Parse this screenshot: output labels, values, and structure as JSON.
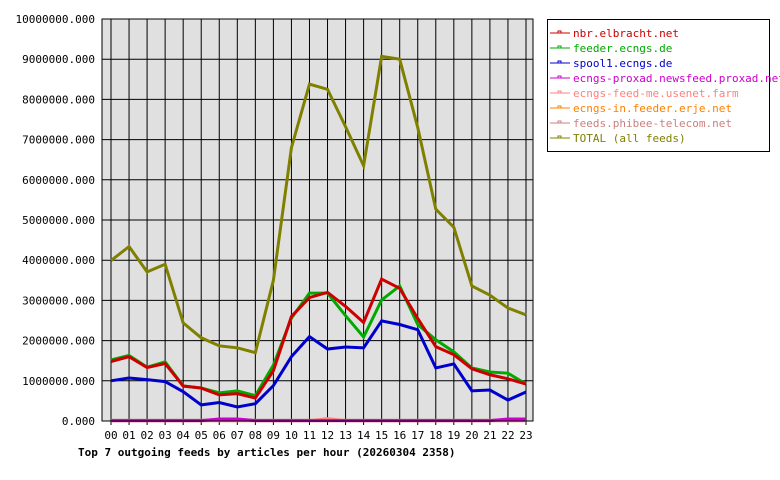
{
  "chart_data": {
    "type": "line",
    "title": "Top 7 outgoing feeds by articles per hour (20260304 2358)",
    "xlabel": "",
    "ylabel": "",
    "categories": [
      "00",
      "01",
      "02",
      "03",
      "04",
      "05",
      "06",
      "07",
      "08",
      "09",
      "10",
      "11",
      "12",
      "13",
      "14",
      "15",
      "16",
      "17",
      "18",
      "19",
      "20",
      "21",
      "22",
      "23"
    ],
    "ylim": [
      0,
      10000000
    ],
    "yticks": [
      "0.000",
      "1000000.000",
      "2000000.000",
      "3000000.000",
      "4000000.000",
      "5000000.000",
      "6000000.000",
      "7000000.000",
      "8000000.000",
      "9000000.000",
      "10000000.000"
    ],
    "grid": true,
    "legend_placement": "right",
    "plot_background": "#e0e0e0",
    "series": [
      {
        "name": "nbr.elbracht.net",
        "color": "#cc0000",
        "values": [
          1480000,
          1600000,
          1330000,
          1430000,
          870000,
          820000,
          650000,
          680000,
          570000,
          1250000,
          2600000,
          3070000,
          3200000,
          2850000,
          2450000,
          3530000,
          3300000,
          2550000,
          1850000,
          1650000,
          1300000,
          1150000,
          1050000,
          920000
        ]
      },
      {
        "name": "feeder.ecngs.de",
        "color": "#00aa00",
        "values": [
          1520000,
          1630000,
          1340000,
          1470000,
          870000,
          820000,
          700000,
          750000,
          630000,
          1390000,
          2560000,
          3180000,
          3180000,
          2620000,
          2090000,
          3010000,
          3360000,
          2400000,
          2020000,
          1720000,
          1320000,
          1220000,
          1190000,
          920000
        ]
      },
      {
        "name": "spool1.ecngs.de",
        "color": "#0000cc",
        "values": [
          1000000,
          1070000,
          1030000,
          980000,
          730000,
          400000,
          460000,
          350000,
          430000,
          880000,
          1600000,
          2100000,
          1790000,
          1840000,
          1820000,
          2490000,
          2400000,
          2270000,
          1320000,
          1420000,
          750000,
          770000,
          520000,
          720000
        ]
      },
      {
        "name": "ecngs-proxad.newsfeed.proxad.net",
        "color": "#cc00cc",
        "values": [
          10000,
          10000,
          10000,
          10000,
          10000,
          10000,
          50000,
          50000,
          10000,
          10000,
          10000,
          10000,
          10000,
          10000,
          10000,
          10000,
          10000,
          10000,
          10000,
          10000,
          10000,
          10000,
          50000,
          50000
        ]
      },
      {
        "name": "ecngs-feed-me.usenet.farm",
        "color": "#ff8080",
        "values": [
          10000,
          10000,
          10000,
          10000,
          10000,
          10000,
          10000,
          10000,
          10000,
          10000,
          10000,
          10000,
          60000,
          10000,
          10000,
          10000,
          10000,
          10000,
          10000,
          10000,
          10000,
          10000,
          10000,
          10000
        ]
      },
      {
        "name": "ecngs-in.feeder.erje.net",
        "color": "#ff8000",
        "values": [
          10000,
          10000,
          10000,
          10000,
          10000,
          10000,
          10000,
          10000,
          10000,
          10000,
          10000,
          10000,
          10000,
          10000,
          10000,
          10000,
          10000,
          10000,
          10000,
          10000,
          10000,
          10000,
          10000,
          10000
        ]
      },
      {
        "name": "feeds.phibee-telecom.net",
        "color": "#cc8080",
        "values": [
          20000,
          20000,
          20000,
          20000,
          20000,
          20000,
          20000,
          20000,
          20000,
          20000,
          20000,
          20000,
          20000,
          20000,
          20000,
          20000,
          20000,
          20000,
          20000,
          20000,
          20000,
          20000,
          20000,
          20000
        ]
      },
      {
        "name": "TOTAL (all feeds)",
        "color": "#808000",
        "values": [
          3990000,
          4340000,
          3710000,
          3900000,
          2440000,
          2070000,
          1870000,
          1820000,
          1700000,
          3500000,
          6800000,
          8380000,
          8250000,
          7320000,
          6350000,
          9070000,
          9000000,
          7300000,
          5270000,
          4820000,
          3360000,
          3130000,
          2810000,
          2640000
        ]
      }
    ]
  }
}
